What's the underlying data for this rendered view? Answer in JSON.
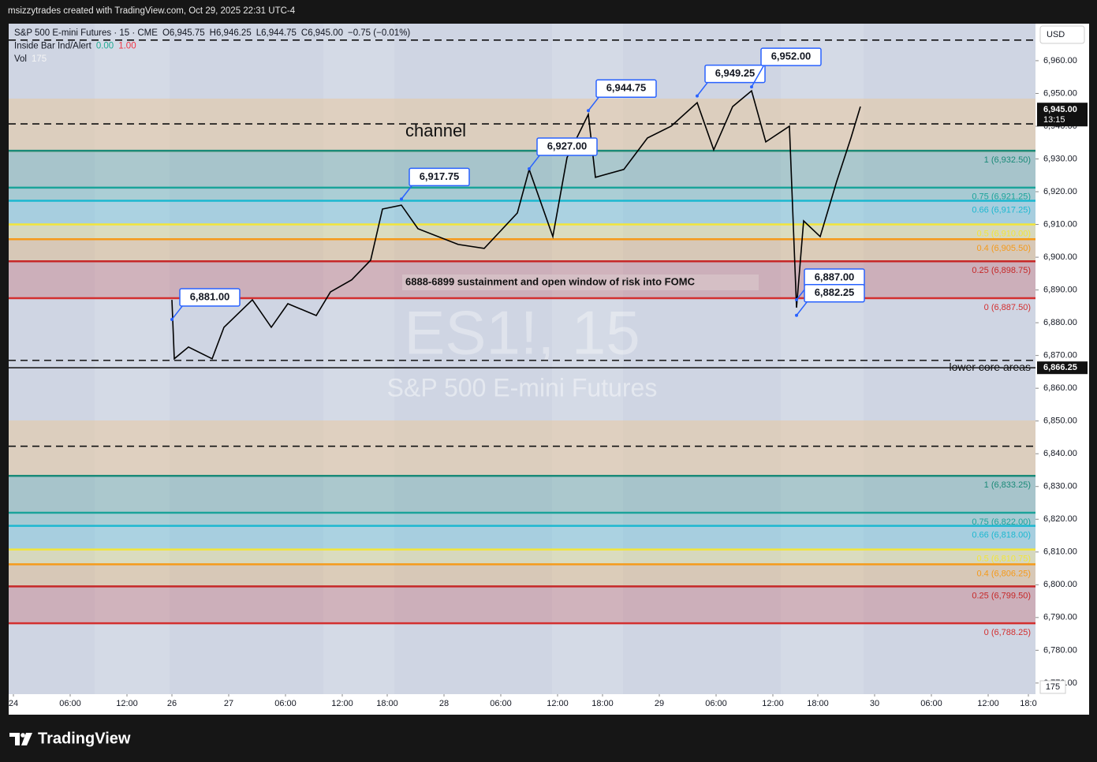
{
  "header": "msizzytrades created with TradingView.com, Oct 29, 2025 22:31 UTC-4",
  "footer": "TradingView",
  "chart_data": {
    "type": "line",
    "currency": "USD",
    "legend_lines": [
      [
        {
          "text": "S&P 500 E-mini Futures · 15 · CME",
          "color": "#131722"
        },
        {
          "text": "O6,945.75",
          "color": "#131722"
        },
        {
          "text": "H6,946.25",
          "color": "#131722"
        },
        {
          "text": "L6,944.75",
          "color": "#131722"
        },
        {
          "text": "C6,945.00",
          "color": "#131722"
        },
        {
          "text": "−0.75 (−0.01%)",
          "color": "#131722"
        }
      ],
      [
        {
          "text": "Inside Bar Ind/Alert",
          "color": "#131722"
        },
        {
          "text": "0.00",
          "color": "#22ab94"
        },
        {
          "text": "1.00",
          "color": "#f23645"
        }
      ],
      [
        {
          "text": "Vol",
          "color": "#131722"
        },
        {
          "text": "175",
          "color": "#f5f5f5"
        }
      ]
    ],
    "watermark": "ES1!, 15",
    "watermark_sub": "S&P 500 E-mini Futures",
    "x": [
      67,
      68,
      74,
      84,
      89,
      101,
      109,
      116,
      128,
      134,
      143,
      151,
      156,
      164,
      171,
      188,
      199,
      213,
      218,
      228,
      234,
      243,
      246,
      258,
      268,
      278,
      289,
      296,
      304,
      312,
      318,
      328,
      331,
      334,
      341,
      348,
      354,
      358
    ],
    "values": [
      6887.0,
      6869.0,
      6872.6,
      6869.0,
      6878.6,
      6887.0,
      6878.6,
      6885.8,
      6882.2,
      6889.4,
      6893.1,
      6899.1,
      6914.7,
      6915.9,
      6908.7,
      6903.9,
      6902.7,
      6913.5,
      6926.8,
      6906.3,
      6930.4,
      6943.6,
      6924.4,
      6926.8,
      6936.4,
      6940.0,
      6947.2,
      6932.8,
      6946.0,
      6950.8,
      6935.2,
      6940.0,
      6884.6,
      6911.1,
      6906.3,
      6923.2,
      6936.4,
      6946.0
    ],
    "color": "#000000",
    "xlim": [
      -2,
      432
    ],
    "xticks": [
      {
        "value": 0,
        "label": "24"
      },
      {
        "value": 24,
        "label": "06:00"
      },
      {
        "value": 48,
        "label": "12:00"
      },
      {
        "value": 67,
        "label": "26"
      },
      {
        "value": 91,
        "label": "27"
      },
      {
        "value": 115,
        "label": "06:00"
      },
      {
        "value": 139,
        "label": "12:00"
      },
      {
        "value": 158,
        "label": "18:00"
      },
      {
        "value": 182,
        "label": "28"
      },
      {
        "value": 206,
        "label": "06:00"
      },
      {
        "value": 230,
        "label": "12:00"
      },
      {
        "value": 249,
        "label": "18:00"
      },
      {
        "value": 273,
        "label": "29"
      },
      {
        "value": 297,
        "label": "06:00"
      },
      {
        "value": 321,
        "label": "12:00"
      },
      {
        "value": 340,
        "label": "18:00"
      },
      {
        "value": 364,
        "label": "30"
      },
      {
        "value": 388,
        "label": "06:00"
      },
      {
        "value": 412,
        "label": "12:00"
      },
      {
        "value": 429,
        "label": "18:0"
      }
    ],
    "ylim": [
      6766.6,
      6970.1
    ],
    "yticks": [
      {
        "value": 6770,
        "label": "6,770.00"
      },
      {
        "value": 6780,
        "label": "6,780.00"
      },
      {
        "value": 6790,
        "label": "6,790.00"
      },
      {
        "value": 6800,
        "label": "6,800.00"
      },
      {
        "value": 6810,
        "label": "6,810.00"
      },
      {
        "value": 6820,
        "label": "6,820.00"
      },
      {
        "value": 6830,
        "label": "6,830.00"
      },
      {
        "value": 6840,
        "label": "6,840.00"
      },
      {
        "value": 6850,
        "label": "6,850.00"
      },
      {
        "value": 6860,
        "label": "6,860.00"
      },
      {
        "value": 6870,
        "label": "6,870.00"
      },
      {
        "value": 6880,
        "label": "6,880.00"
      },
      {
        "value": 6890,
        "label": "6,890.00"
      },
      {
        "value": 6900,
        "label": "6,900.00"
      },
      {
        "value": 6910,
        "label": "6,910.00"
      },
      {
        "value": 6920,
        "label": "6,920.00"
      },
      {
        "value": 6930,
        "label": "6,930.00"
      },
      {
        "value": 6940,
        "label": "6,940.00"
      },
      {
        "value": 6950,
        "label": "6,950.00"
      },
      {
        "value": 6960,
        "label": "6,960.00"
      }
    ],
    "last_price": {
      "value": 6945.0,
      "label": "6,945.00"
    },
    "countdown": "13:15",
    "price_marker": {
      "value": 6866.25,
      "label": "6,866.25",
      "text": "lower core areas"
    },
    "dashed_levels": [
      6966.3,
      6940.7,
      6868.5,
      6842.3
    ],
    "levels": [
      {
        "value": 6932.5,
        "label": "1 (6,932.50)",
        "color": "#1a8a78"
      },
      {
        "value": 6921.25,
        "label": "0.75 (6,921.25)",
        "color": "#1aa39a"
      },
      {
        "value": 6917.25,
        "label": "0.66 (6,917.25)",
        "color": "#1cb8d0"
      },
      {
        "value": 6910.0,
        "label": "0.5 (6,910.00)",
        "color": "#f2e53a"
      },
      {
        "value": 6905.5,
        "label": "0.4 (6,905.50)",
        "color": "#f59a1a"
      },
      {
        "value": 6898.75,
        "label": "0.25 (6,898.75)",
        "color": "#c62828"
      },
      {
        "value": 6887.5,
        "label": "0 (6,887.50)",
        "color": "#d32f2f"
      },
      {
        "value": 6833.25,
        "label": "1 (6,833.25)",
        "color": "#1a8a78"
      },
      {
        "value": 6822.0,
        "label": "0.75 (6,822.00)",
        "color": "#1aa39a"
      },
      {
        "value": 6818.0,
        "label": "0.66 (6,818.00)",
        "color": "#1cb8d0"
      },
      {
        "value": 6810.75,
        "label": "0.5 (6,810.75)",
        "color": "#f2e53a"
      },
      {
        "value": 6806.25,
        "label": "0.4 (6,806.25)",
        "color": "#f59a1a"
      },
      {
        "value": 6799.5,
        "label": "0.25 (6,799.50)",
        "color": "#c62828"
      },
      {
        "value": 6788.25,
        "label": "0 (6,788.25)",
        "color": "#d32f2f"
      }
    ],
    "callouts": [
      {
        "x": 67,
        "value": 6881.0,
        "label": "6,881.00"
      },
      {
        "x": 164,
        "value": 6917.75,
        "label": "6,917.75"
      },
      {
        "x": 218,
        "value": 6927.0,
        "label": "6,927.00"
      },
      {
        "x": 243,
        "value": 6944.75,
        "label": "6,944.75"
      },
      {
        "x": 289,
        "value": 6949.25,
        "label": "6,949.25"
      },
      {
        "x": 312,
        "value": 6952.0,
        "label": "6,952.00"
      },
      {
        "x": 331,
        "value": 6887.0,
        "label": "6,887.00"
      },
      {
        "x": 331,
        "value": 6882.25,
        "label": "6,882.25"
      }
    ],
    "notes": [
      "channel",
      "6888-6899 sustainment and open window of risk into FOMC"
    ],
    "volume_label": "175"
  }
}
